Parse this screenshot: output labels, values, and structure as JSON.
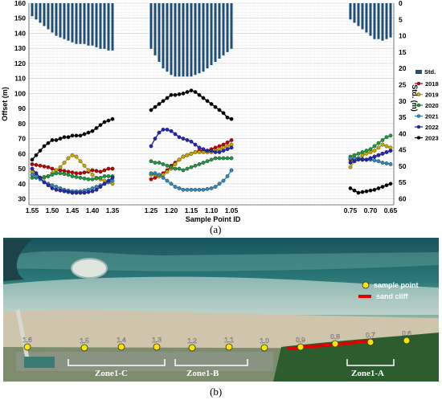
{
  "panel_labels": {
    "a": "(a)",
    "b": "(b)"
  },
  "chart_data": {
    "type": "line",
    "xlabel": "Sample Point ID",
    "ylabel": "Offset (m)",
    "y2label": "Std. (m)",
    "ylim": [
      26,
      160
    ],
    "y_ticks": [
      30,
      40,
      50,
      60,
      70,
      80,
      90,
      100,
      110,
      120,
      130,
      140,
      150,
      160
    ],
    "y2_ticks": [
      0,
      5,
      10,
      15,
      20,
      25,
      30,
      35,
      40,
      45,
      50,
      55,
      60
    ],
    "y2_range": [
      0,
      60
    ],
    "grid": true,
    "legend_position": "right",
    "x_tick_labels": [
      "1.55",
      "1.50",
      "1.45",
      "1.40",
      "1.35",
      "1.25",
      "1.20",
      "1.15",
      "1.10",
      "1.05",
      "0.75",
      "0.70",
      "0.65"
    ],
    "x_tick_values": [
      1.55,
      1.5,
      1.45,
      1.4,
      1.35,
      1.25,
      1.2,
      1.15,
      1.1,
      1.05,
      0.75,
      0.7,
      0.65
    ],
    "segments": [
      {
        "name": "seg1",
        "x": [
          1.55,
          1.54,
          1.53,
          1.52,
          1.51,
          1.5,
          1.49,
          1.48,
          1.47,
          1.46,
          1.45,
          1.44,
          1.43,
          1.42,
          1.41,
          1.4,
          1.39,
          1.38,
          1.37,
          1.36,
          1.35
        ]
      },
      {
        "name": "seg2",
        "x": [
          1.25,
          1.24,
          1.23,
          1.22,
          1.21,
          1.2,
          1.19,
          1.18,
          1.17,
          1.16,
          1.15,
          1.14,
          1.13,
          1.12,
          1.11,
          1.1,
          1.09,
          1.08,
          1.07,
          1.06,
          1.05
        ]
      },
      {
        "name": "seg3",
        "x": [
          0.75,
          0.74,
          0.73,
          0.72,
          0.71,
          0.7,
          0.69,
          0.68,
          0.67,
          0.66,
          0.65
        ]
      }
    ],
    "std_bars": {
      "name": "Std.",
      "color": "#1f4e79",
      "seg1": [
        4,
        5,
        6,
        7,
        8,
        9,
        10,
        10.5,
        11,
        11.5,
        12,
        12.5,
        12.5,
        12.5,
        13,
        13,
        13.5,
        14,
        14,
        14.5,
        14.5
      ],
      "seg2": [
        14,
        16,
        18,
        20,
        21,
        22,
        22.5,
        22.5,
        22.5,
        22.5,
        22.5,
        22,
        21.5,
        21,
        20,
        19,
        18,
        17,
        16,
        15,
        14
      ],
      "seg3": [
        5,
        6,
        7,
        8,
        9,
        10,
        11,
        11,
        11.5,
        11,
        10.5
      ]
    },
    "series": [
      {
        "name": "2018",
        "color": "#c00000",
        "seg1": [
          53,
          52.5,
          52,
          51.5,
          51,
          50,
          49,
          49,
          48.5,
          48,
          47.5,
          47,
          47,
          47.5,
          48,
          49,
          48.5,
          48,
          49,
          50,
          50
        ],
        "seg2": [
          43,
          44,
          45,
          47,
          49,
          52,
          54,
          56,
          58,
          59,
          60,
          61,
          62,
          62,
          62,
          63,
          64,
          65,
          66,
          67.5,
          69
        ],
        "seg3": [
          56,
          56,
          56.5,
          56,
          56,
          57,
          58,
          59,
          60,
          61,
          62
        ]
      },
      {
        "name": "2019",
        "color": "#c9a800",
        "seg1": [
          48,
          45,
          44,
          44,
          45,
          47,
          49,
          51,
          54,
          57,
          59,
          58,
          55,
          52,
          49,
          46,
          44,
          43,
          42,
          41,
          40
        ],
        "seg2": [
          46,
          46,
          45,
          46,
          48,
          50,
          53,
          56,
          58,
          59,
          60,
          61,
          61,
          61,
          61,
          61,
          62,
          63,
          64,
          65,
          66
        ],
        "seg3": [
          51,
          55,
          57,
          59,
          60,
          61,
          62,
          64,
          66,
          65,
          64
        ]
      },
      {
        "name": "2020",
        "color": "#1a9a3c",
        "seg1": [
          44,
          44,
          44,
          44.5,
          45,
          46,
          47,
          47,
          46.5,
          46,
          45,
          44.5,
          44,
          43.5,
          43,
          43,
          43.5,
          44,
          45,
          45,
          45
        ],
        "seg2": [
          55,
          54,
          54,
          53,
          52,
          51,
          50,
          50,
          49,
          50,
          51,
          52,
          53,
          54,
          55,
          56,
          57,
          57,
          57,
          57,
          57
        ],
        "seg3": [
          58,
          59,
          60,
          61,
          62,
          63,
          65,
          67,
          69,
          71,
          72
        ]
      },
      {
        "name": "2021",
        "color": "#2e8bc0",
        "seg1": [
          46,
          45,
          43,
          41,
          40,
          39,
          38,
          37,
          36,
          35.5,
          35,
          35,
          35,
          35.5,
          36,
          37,
          38,
          39,
          40,
          41,
          42
        ],
        "seg2": [
          47,
          47,
          46,
          44,
          42,
          40,
          38,
          37,
          36,
          36,
          36,
          36,
          36,
          36,
          36.5,
          37,
          38,
          40,
          42,
          45,
          49
        ],
        "seg3": [
          57,
          57,
          57,
          56.5,
          56,
          56,
          55.5,
          55,
          54,
          53.5,
          53
        ]
      },
      {
        "name": "2022",
        "color": "#2424b8",
        "seg1": [
          50,
          47,
          44,
          41,
          39,
          37,
          36,
          35.5,
          35,
          34.5,
          34,
          34,
          34,
          34,
          34.5,
          35,
          36,
          38,
          40,
          42,
          44
        ],
        "seg2": [
          65,
          70,
          74,
          76,
          76,
          75,
          73,
          71,
          70,
          69,
          68,
          66,
          64,
          63,
          62,
          62,
          61,
          61,
          62,
          63,
          64
        ],
        "seg3": [
          54,
          55,
          56,
          56,
          56,
          57,
          58,
          59,
          60,
          61,
          62
        ]
      },
      {
        "name": "2023",
        "color": "#000000",
        "seg1": [
          56,
          59,
          62,
          65,
          67,
          69,
          69,
          70,
          71,
          71,
          72,
          72,
          72,
          73,
          74,
          75,
          77,
          79,
          81,
          82,
          83
        ],
        "seg2": [
          89,
          91,
          93,
          95,
          97,
          99,
          99,
          99.5,
          100,
          101,
          102,
          101,
          99,
          97,
          95,
          93,
          91,
          89,
          87,
          84,
          83
        ],
        "seg3": [
          37,
          35.5,
          34,
          34.5,
          35,
          35.5,
          36,
          37,
          38,
          39,
          40
        ]
      }
    ]
  },
  "photo": {
    "legend": {
      "sample_point": "sample point",
      "sand_cliff": "sand cliff"
    },
    "sample_points": [
      "1.6",
      "1.5",
      "1.4",
      "1.3",
      "1.2",
      "1.1",
      "1.0",
      "0.9",
      "0.8",
      "0.7",
      "0.6"
    ],
    "zones": [
      "Zone1-C",
      "Zone1-B",
      "Zone1-A"
    ]
  }
}
